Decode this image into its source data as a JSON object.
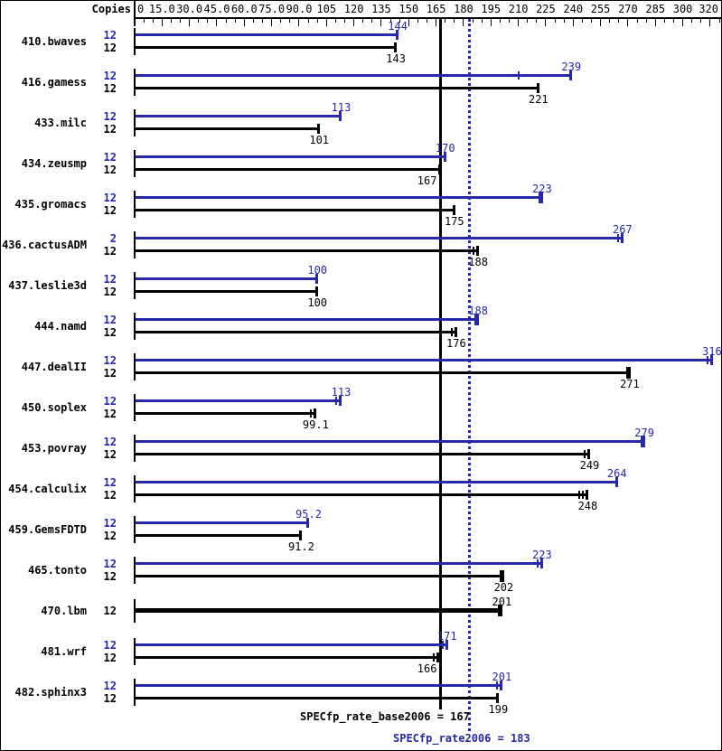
{
  "header": {
    "copies_label": "Copies"
  },
  "colors": {
    "peak_blue": "#2828aa",
    "base_black": "#000000",
    "background": "#ffffff"
  },
  "axis": {
    "min": 0,
    "max": 320,
    "major_step": 15,
    "minor_step": 5,
    "tick_labels": [
      {
        "text": "0",
        "value": 0,
        "align": "left"
      },
      {
        "text": "15.0",
        "value": 15
      },
      {
        "text": "30.0",
        "value": 30
      },
      {
        "text": "45.0",
        "value": 45
      },
      {
        "text": "60.0",
        "value": 60
      },
      {
        "text": "75.0",
        "value": 75
      },
      {
        "text": "90.0",
        "value": 90
      },
      {
        "text": "105",
        "value": 105
      },
      {
        "text": "120",
        "value": 120
      },
      {
        "text": "135",
        "value": 135
      },
      {
        "text": "150",
        "value": 150
      },
      {
        "text": "165",
        "value": 165
      },
      {
        "text": "180",
        "value": 180
      },
      {
        "text": "195",
        "value": 195
      },
      {
        "text": "210",
        "value": 210
      },
      {
        "text": "225",
        "value": 225
      },
      {
        "text": "240",
        "value": 240
      },
      {
        "text": "255",
        "value": 255
      },
      {
        "text": "270",
        "value": 270
      },
      {
        "text": "285",
        "value": 285
      },
      {
        "text": "300",
        "value": 300
      },
      {
        "text": "320",
        "value": 319.5,
        "align": "right"
      }
    ]
  },
  "chart_data": {
    "type": "bar",
    "orientation": "horizontal",
    "title": "",
    "xlabel": "",
    "xlim": [
      0,
      320
    ],
    "grid": false,
    "series": [
      {
        "name": "peak (SPECfp_rate2006)",
        "color": "#2828aa"
      },
      {
        "name": "base (SPECfp_rate_base2006)",
        "color": "#000000"
      }
    ],
    "benchmarks": [
      {
        "name": "410.bwaves",
        "peak": {
          "copies": "12",
          "value": 144,
          "label": "144",
          "end": "single"
        },
        "base": {
          "copies": "12",
          "value": 143,
          "label": "143",
          "end": "single"
        }
      },
      {
        "name": "416.gamess",
        "peak": {
          "copies": "12",
          "value": 239,
          "label": "239",
          "end": "single",
          "marks": [
            210
          ]
        },
        "base": {
          "copies": "12",
          "value": 221,
          "label": "221",
          "end": "single"
        }
      },
      {
        "name": "433.milc",
        "peak": {
          "copies": "12",
          "value": 113,
          "label": "113",
          "end": "single"
        },
        "base": {
          "copies": "12",
          "value": 101,
          "label": "101",
          "end": "single"
        }
      },
      {
        "name": "434.zeusmp",
        "peak": {
          "copies": "12",
          "value": 170,
          "label": "170",
          "end": "single"
        },
        "base": {
          "copies": "12",
          "value": 167,
          "label": "167",
          "end": "single",
          "label_dx": -14
        }
      },
      {
        "name": "435.gromacs",
        "peak": {
          "copies": "12",
          "value": 223,
          "label": "223",
          "end": "thick"
        },
        "base": {
          "copies": "12",
          "value": 175,
          "label": "175",
          "end": "single"
        }
      },
      {
        "name": "436.cactusADM",
        "peak": {
          "copies": "2",
          "value": 267,
          "label": "267",
          "end": "double"
        },
        "base": {
          "copies": "12",
          "value": 188,
          "label": "188",
          "end": "double"
        }
      },
      {
        "name": "437.leslie3d",
        "peak": {
          "copies": "12",
          "value": 100,
          "label": "100",
          "end": "single"
        },
        "base": {
          "copies": "12",
          "value": 100,
          "label": "100",
          "end": "single"
        }
      },
      {
        "name": "444.namd",
        "peak": {
          "copies": "12",
          "value": 188,
          "label": "188",
          "end": "thick"
        },
        "base": {
          "copies": "12",
          "value": 176,
          "label": "176",
          "end": "double"
        }
      },
      {
        "name": "447.dealII",
        "peak": {
          "copies": "12",
          "value": 316,
          "label": "316",
          "end": "double"
        },
        "base": {
          "copies": "12",
          "value": 271,
          "label": "271",
          "end": "thick"
        }
      },
      {
        "name": "450.soplex",
        "peak": {
          "copies": "12",
          "value": 113,
          "label": "113",
          "end": "double"
        },
        "base": {
          "copies": "12",
          "value": 99.1,
          "label": "99.1",
          "end": "double"
        }
      },
      {
        "name": "453.povray",
        "peak": {
          "copies": "12",
          "value": 279,
          "label": "279",
          "end": "thick"
        },
        "base": {
          "copies": "12",
          "value": 249,
          "label": "249",
          "end": "double"
        }
      },
      {
        "name": "454.calculix",
        "peak": {
          "copies": "12",
          "value": 264,
          "label": "264",
          "end": "single"
        },
        "base": {
          "copies": "12",
          "value": 248,
          "label": "248",
          "end": "triple"
        }
      },
      {
        "name": "459.GemsFDTD",
        "peak": {
          "copies": "12",
          "value": 95.2,
          "label": "95.2",
          "end": "single"
        },
        "base": {
          "copies": "12",
          "value": 91.2,
          "label": "91.2",
          "end": "single"
        }
      },
      {
        "name": "465.tonto",
        "peak": {
          "copies": "12",
          "value": 223,
          "label": "223",
          "end": "double"
        },
        "base": {
          "copies": "12",
          "value": 202,
          "label": "202",
          "end": "thick"
        }
      },
      {
        "name": "470.lbm",
        "merged": {
          "copies": "12",
          "value": 201,
          "label": "201",
          "end": "thick"
        }
      },
      {
        "name": "481.wrf",
        "peak": {
          "copies": "12",
          "value": 171,
          "label": "171",
          "end": "double"
        },
        "base": {
          "copies": "12",
          "value": 166,
          "label": "166",
          "end": "double",
          "label_dx": -12
        }
      },
      {
        "name": "482.sphinx3",
        "peak": {
          "copies": "12",
          "value": 201,
          "label": "201",
          "end": "double"
        },
        "base": {
          "copies": "12",
          "value": 199,
          "label": "199",
          "end": "single"
        }
      }
    ],
    "reference_lines": [
      {
        "name": "base",
        "label": "SPECfp_rate_base2006 = 167",
        "value": 167,
        "line_style": "solid",
        "color": "#000000"
      },
      {
        "name": "peak",
        "label": "SPECfp_rate2006 = 183",
        "value": 183,
        "line_style": "dotted",
        "color": "#2828aa"
      }
    ]
  }
}
